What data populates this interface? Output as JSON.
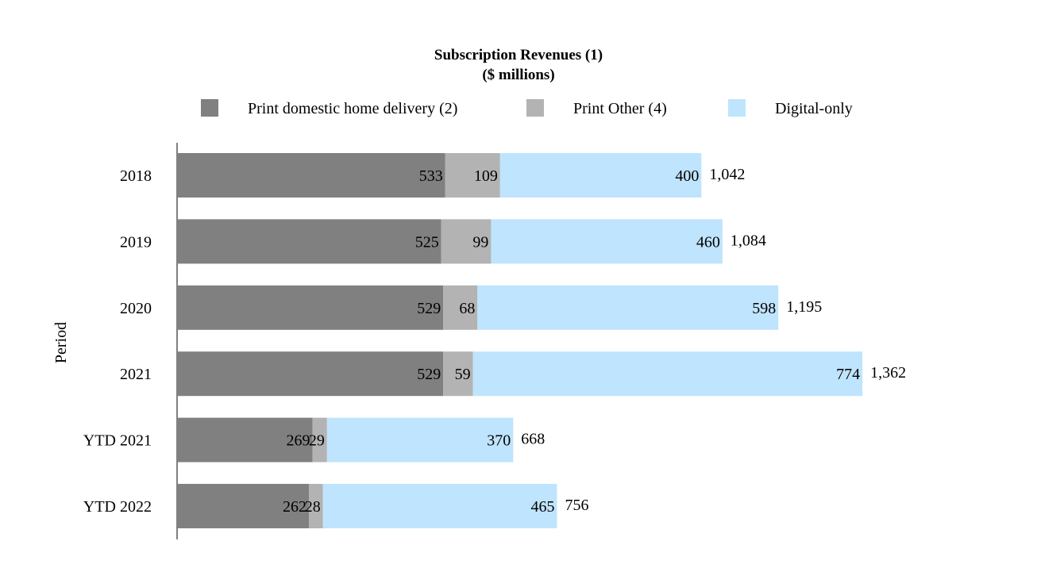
{
  "chart_data": {
    "type": "bar",
    "orientation": "horizontal",
    "stacked": true,
    "title": "Subscription Revenues (1)",
    "subtitle": "($ millions)",
    "ylabel": "Period",
    "xlabel": "",
    "legend_position": "top",
    "grid": false,
    "xlim": [
      0,
      1500
    ],
    "categories": [
      "2018",
      "2019",
      "2020",
      "2021",
      "YTD 2021",
      "YTD 2022"
    ],
    "series": [
      {
        "name": "Print domestic home delivery (2)",
        "color": "#808080",
        "values": [
          533,
          525,
          529,
          529,
          269,
          262
        ]
      },
      {
        "name": "Print Other (4)",
        "color": "#b3b3b3",
        "values": [
          109,
          99,
          68,
          59,
          29,
          28
        ]
      },
      {
        "name": "Digital-only",
        "color": "#bfe4fd",
        "values": [
          400,
          460,
          598,
          774,
          370,
          465
        ]
      }
    ],
    "totals": [
      "1,042",
      "1,084",
      "1,195",
      "1,362",
      "668",
      "756"
    ]
  }
}
